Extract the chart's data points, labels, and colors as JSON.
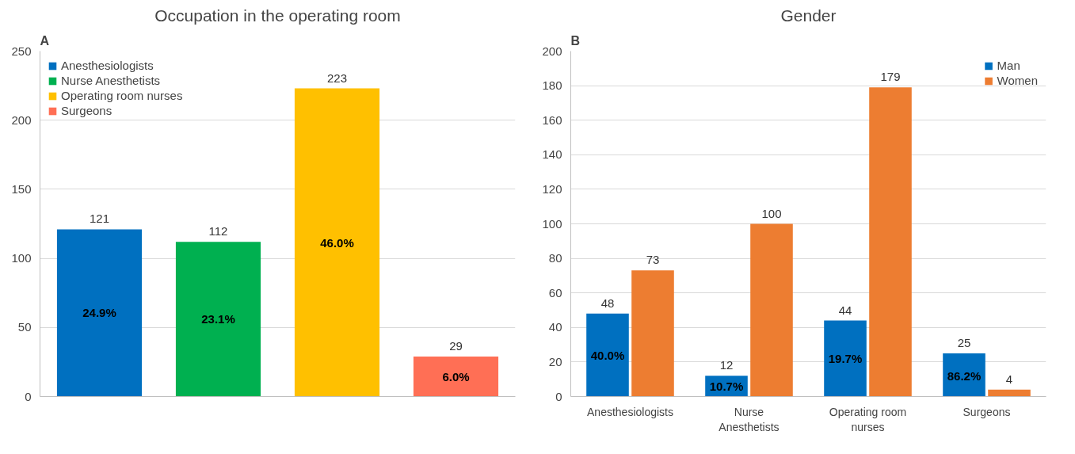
{
  "chart_data": [
    {
      "type": "bar",
      "title": "Occupation in the operating room",
      "subtitle": "A",
      "categories": [
        null,
        null,
        null,
        null
      ],
      "series": [
        {
          "name": "Anesthesiologists",
          "color": "#0070c0",
          "values": [
            121,
            null,
            null,
            null
          ]
        },
        {
          "name": "Nurse Anesthetists",
          "color": "#00b050",
          "values": [
            null,
            112,
            null,
            null
          ]
        },
        {
          "name": "Operating room nurses",
          "color": "#ffc000",
          "values": [
            null,
            null,
            223,
            null
          ]
        },
        {
          "name": "Surgeons",
          "color": "#ff6f55",
          "values": [
            null,
            null,
            null,
            29
          ]
        }
      ],
      "data_labels": true,
      "annotations": [
        "24.9%",
        "23.1%",
        "46.0%",
        "6.0%"
      ],
      "ylim": [
        0,
        250
      ],
      "yticks": [
        0,
        50,
        100,
        150,
        200,
        250
      ],
      "grid": "y",
      "legend": "top left",
      "tick_labels": "y"
    },
    {
      "type": "bar",
      "title": "Gender",
      "subtitle": "B",
      "categories": [
        "Anesthesiologists",
        "Nurse Anesthetists",
        "Operating room nurses",
        "Surgeons"
      ],
      "series": [
        {
          "name": "Man",
          "color": "#0070c0",
          "values": [
            48,
            12,
            44,
            25
          ]
        },
        {
          "name": "Women",
          "color": "#ed7d31",
          "values": [
            73,
            100,
            179,
            4
          ]
        }
      ],
      "data_labels": true,
      "annotations": [
        {
          "text": "40.0%",
          "x": "Anesthesiologists",
          "y": 24
        },
        {
          "text": "10.7%",
          "x": "Nurse Anesthetists",
          "y": 6
        },
        {
          "text": "19.7%",
          "x": "Operating room nurses",
          "y": 22
        },
        {
          "text": "86.2%",
          "x": "Surgeons",
          "y": 12
        }
      ],
      "ylim": [
        0,
        200
      ],
      "yticks": [
        0,
        20,
        40,
        60,
        80,
        100,
        120,
        140,
        160,
        180,
        200
      ],
      "grid": "y",
      "legend": "top right"
    }
  ]
}
